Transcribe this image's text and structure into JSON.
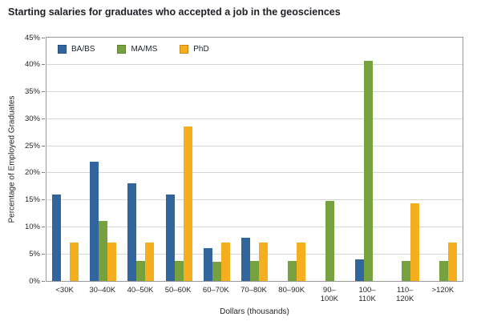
{
  "title": "Starting salaries for graduates who accepted a job in the geosciences",
  "colors": {
    "title_text": "#1c2026",
    "axis_text": "#262626",
    "grid": "#d6d6d6",
    "plot_border": "#999999"
  },
  "chart_data": {
    "type": "bar",
    "title": "Starting salaries for graduates who accepted a job in the geosciences",
    "xlabel": "Dollars (thousands)",
    "ylabel": "Percentage of Employed Graduates",
    "ylim": [
      0,
      45
    ],
    "ytick_step": 5,
    "ytick_labels": [
      "0%",
      "5%",
      "10%",
      "15%",
      "20%",
      "25%",
      "30%",
      "35%",
      "40%",
      "45%"
    ],
    "grid": true,
    "legend_position": "top-left inside plot",
    "categories": [
      "<30K",
      "30–40K",
      "40–50K",
      "50–60K",
      "60–70K",
      "70–80K",
      "80–90K",
      "90–\n100K",
      "100–\n110K",
      "110–\n120K",
      ">120K"
    ],
    "series": [
      {
        "name": "BA/BS",
        "color": "#31659E",
        "values": [
          16,
          22,
          18,
          16,
          6,
          8,
          0,
          0,
          4,
          0,
          0
        ]
      },
      {
        "name": "MA/MS",
        "color": "#76A13F",
        "values": [
          0,
          11.1,
          3.7,
          3.7,
          3.6,
          3.7,
          3.7,
          14.8,
          40.7,
          3.7,
          3.7
        ]
      },
      {
        "name": "PhD",
        "color": "#F5AE1E",
        "values": [
          7.1,
          7.1,
          7.1,
          28.6,
          7.1,
          7.1,
          7.1,
          0,
          0,
          14.3,
          7.1
        ]
      }
    ]
  }
}
